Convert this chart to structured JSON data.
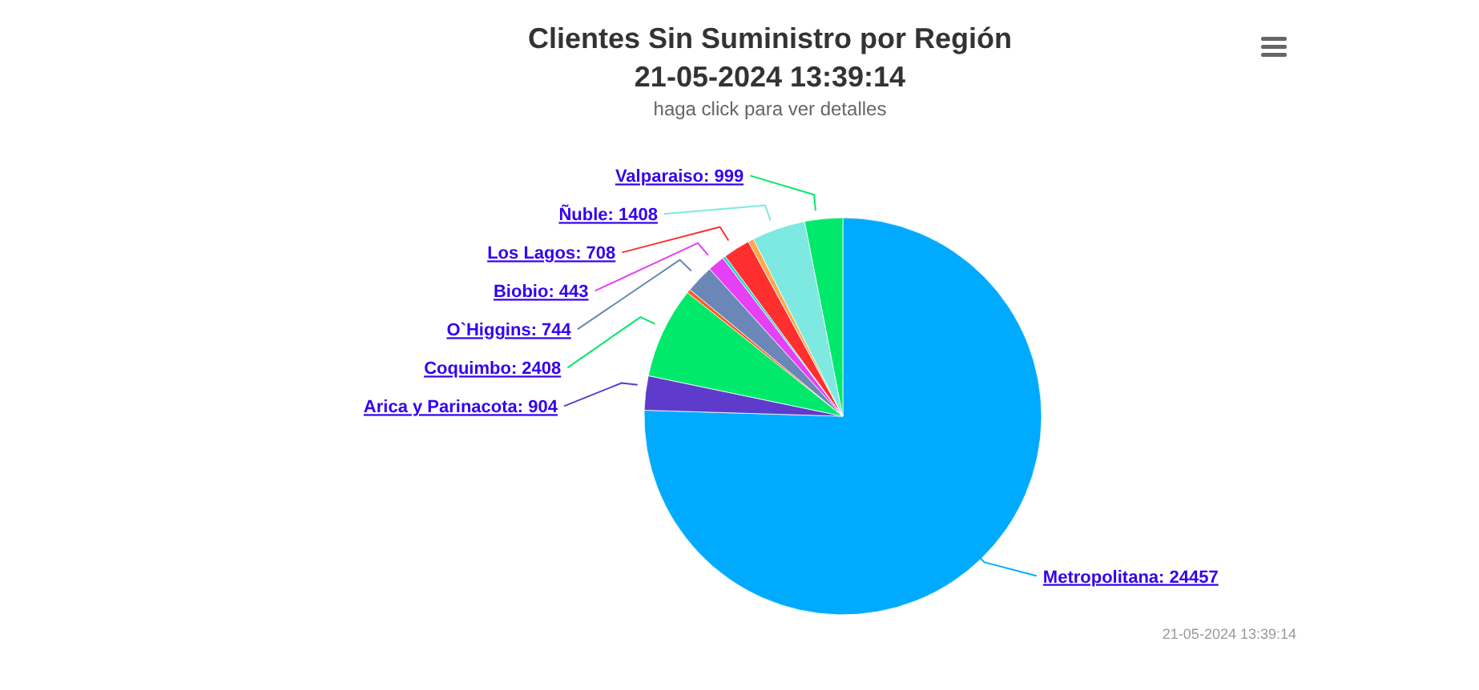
{
  "chart_data": {
    "type": "pie",
    "title": "Clientes Sin Suministro por Región\n21-05-2024 13:39:14",
    "subtitle": "haga click para ver detalles",
    "categories": [
      "Metropolitana",
      "Arica y Parinacota",
      "Coquimbo",
      null,
      "O`Higgins",
      "Biobio",
      null,
      "Los Lagos",
      null,
      "Ñuble",
      "Valparaiso"
    ],
    "values": [
      24457,
      904,
      2408,
      100,
      744,
      443,
      80,
      708,
      150,
      1408,
      999
    ],
    "value_labels": [
      "24457",
      "904",
      "2408",
      null,
      "744",
      "443",
      null,
      "708",
      null,
      "1408",
      "999"
    ],
    "colors": [
      "#00aaff",
      "#5e3bcb",
      "#00e96b",
      "#ff5a1f",
      "#6a87b8",
      "#e640f5",
      "#22d8d0",
      "#ff2f2f",
      "#ffa94d",
      "#7de9e1",
      "#00e96b"
    ],
    "legend": false,
    "annotations": [
      "21-05-2024 13:39:14"
    ]
  }
}
